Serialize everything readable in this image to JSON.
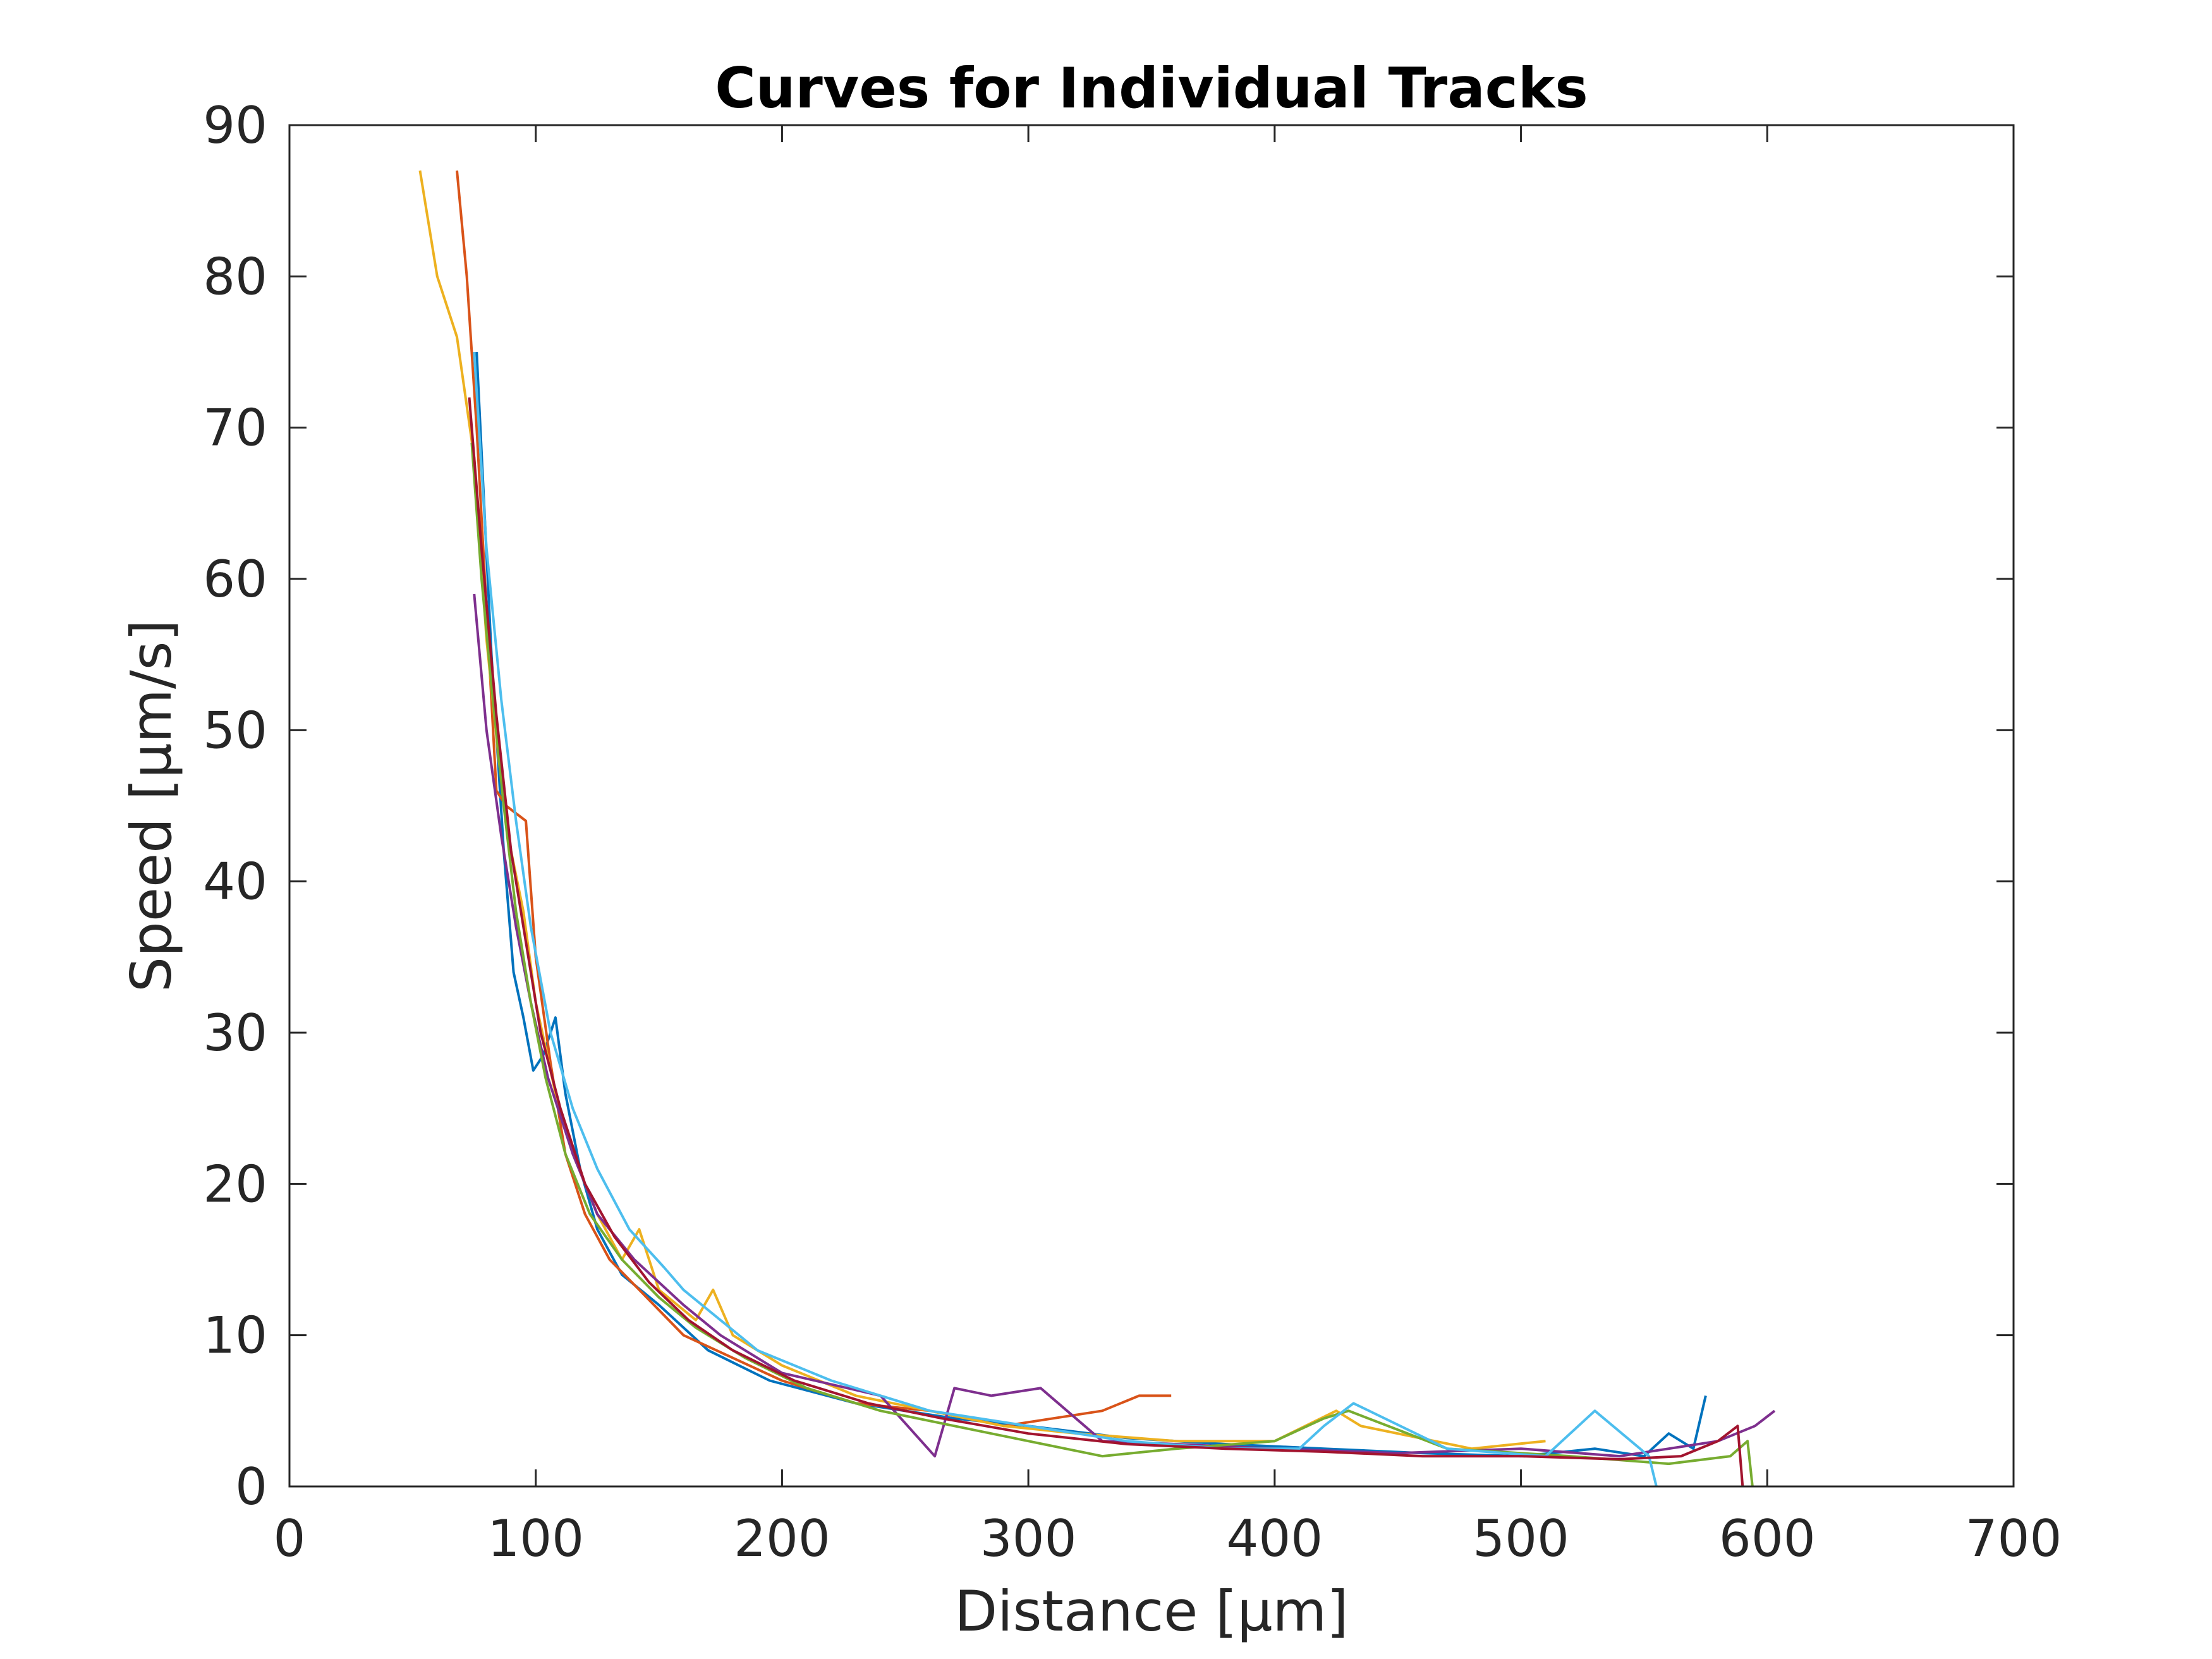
{
  "chart_data": {
    "type": "line",
    "title": "Curves for Individual Tracks",
    "xlabel": "Distance [μm]",
    "ylabel": "Speed [μm/s]",
    "xlim": [
      0,
      700
    ],
    "ylim": [
      0,
      90
    ],
    "xticks": [
      0,
      100,
      200,
      300,
      400,
      500,
      600,
      700
    ],
    "yticks": [
      0,
      10,
      20,
      30,
      40,
      50,
      60,
      70,
      80,
      90
    ],
    "grid": false,
    "legend": "none",
    "colors": [
      "#0072BD",
      "#D95319",
      "#EDB120",
      "#7E2F8E",
      "#77AC30",
      "#4DBEEE",
      "#A2142F"
    ],
    "series": [
      {
        "color": "#0072BD",
        "x": [
          76,
          82,
          87,
          91,
          95,
          99,
          103,
          108,
          112,
          118,
          125,
          135,
          150,
          170,
          195,
          230,
          270,
          300,
          340,
          380,
          420,
          460,
          500,
          530,
          550,
          560,
          570,
          575
        ],
        "values": [
          75,
          55,
          42,
          34,
          31,
          27.5,
          28.5,
          31,
          26,
          21,
          17,
          14,
          12,
          9,
          7,
          5.5,
          4.5,
          4,
          3.2,
          2.8,
          2.5,
          2.2,
          2,
          2.5,
          2,
          3.5,
          2.5,
          6
        ]
      },
      {
        "color": "#D95319",
        "x": [
          68,
          72,
          76,
          80,
          84,
          88,
          92,
          96,
          100,
          106,
          112,
          120,
          130,
          145,
          160,
          180,
          200,
          230,
          260,
          290,
          310,
          330,
          345,
          358
        ],
        "values": [
          87,
          80,
          70,
          58,
          46,
          45,
          44.5,
          44,
          35,
          28,
          22,
          18,
          15,
          12.5,
          10,
          8.5,
          7,
          5.5,
          5,
          4,
          4.5,
          5,
          6,
          6
        ]
      },
      {
        "color": "#EDB120",
        "x": [
          53,
          60,
          68,
          75,
          80,
          85,
          90,
          95,
          100,
          108,
          115,
          125,
          135,
          142,
          150,
          165,
          172,
          180,
          200,
          230,
          260,
          290,
          320,
          360,
          400,
          425,
          435,
          480,
          510
        ],
        "values": [
          87,
          80,
          76,
          68,
          56,
          48,
          42,
          38,
          32,
          26,
          22,
          18,
          15,
          17,
          13,
          11,
          13,
          10,
          8,
          6,
          5,
          4,
          3.5,
          3,
          3,
          5,
          4,
          2.5,
          3
        ]
      },
      {
        "color": "#7E2F8E",
        "x": [
          75,
          80,
          86,
          92,
          98,
          105,
          115,
          125,
          140,
          160,
          175,
          200,
          240,
          262,
          270,
          285,
          305,
          330,
          360,
          400,
          450,
          500,
          540,
          560,
          580,
          595,
          603
        ],
        "values": [
          59,
          50,
          43,
          37,
          32,
          27,
          22,
          18,
          15,
          12,
          10,
          7.5,
          6,
          2,
          6.5,
          6,
          6.5,
          3,
          2.8,
          2.5,
          2.2,
          2.5,
          2,
          2.5,
          3,
          4,
          5
        ]
      },
      {
        "color": "#77AC30",
        "x": [
          74,
          78,
          82,
          87,
          92,
          98,
          104,
          112,
          122,
          135,
          150,
          165,
          185,
          210,
          240,
          270,
          300,
          330,
          360,
          400,
          420,
          430,
          470,
          520,
          560,
          585,
          592,
          594
        ],
        "values": [
          69,
          60,
          53,
          45,
          38,
          32,
          27,
          22,
          18,
          15,
          12.5,
          10.5,
          8.5,
          6.5,
          5,
          4,
          3,
          2,
          2.5,
          3,
          4.5,
          5,
          2.5,
          2,
          1.5,
          2,
          3,
          0
        ]
      },
      {
        "color": "#4DBEEE",
        "x": [
          75,
          80,
          86,
          92,
          98,
          106,
          115,
          125,
          138,
          152,
          160,
          190,
          220,
          260,
          300,
          340,
          380,
          410,
          420,
          432,
          470,
          510,
          530,
          552,
          555
        ],
        "values": [
          75,
          62,
          52,
          44,
          37,
          30,
          25,
          21,
          17,
          14.5,
          13,
          9,
          7,
          5,
          4,
          3,
          2.5,
          2.5,
          4,
          5.5,
          2.5,
          2,
          5,
          2,
          0
        ]
      },
      {
        "color": "#A2142F",
        "x": [
          73,
          78,
          84,
          90,
          96,
          102,
          110,
          120,
          132,
          146,
          162,
          180,
          205,
          235,
          265,
          300,
          340,
          380,
          420,
          460,
          500,
          540,
          565,
          580,
          588,
          590
        ],
        "values": [
          72,
          62,
          51,
          42,
          36,
          30,
          25,
          20,
          16.5,
          13.5,
          11,
          9,
          7,
          5.5,
          4.5,
          3.5,
          2.8,
          2.5,
          2.3,
          2,
          2,
          1.8,
          2,
          3,
          4,
          0
        ]
      }
    ]
  }
}
